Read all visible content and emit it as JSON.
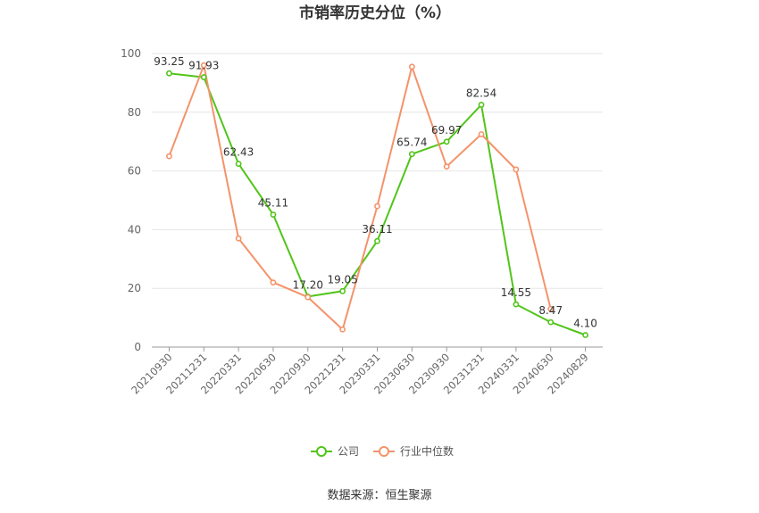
{
  "chart_data": {
    "type": "line",
    "title": "市销率历史分位（%）",
    "categories": [
      "20210930",
      "20211231",
      "20220331",
      "20220630",
      "20220930",
      "20221231",
      "20230331",
      "20230630",
      "20230930",
      "20231231",
      "20240331",
      "20240630",
      "20240829"
    ],
    "series": [
      {
        "name": "公司",
        "color": "#52c41a",
        "values": [
          93.25,
          91.93,
          62.43,
          45.11,
          17.2,
          19.05,
          36.11,
          65.74,
          69.97,
          82.54,
          14.55,
          8.47,
          4.1
        ],
        "labeled": true
      },
      {
        "name": "行业中位数",
        "color": "#f4936b",
        "values": [
          65,
          96,
          37,
          22,
          17,
          6,
          48,
          95.5,
          61.5,
          72.5,
          60.5,
          13,
          null
        ],
        "labeled": false
      }
    ],
    "y_ticks": [
      0,
      20,
      40,
      60,
      80,
      100
    ],
    "ylim": [
      0,
      100
    ],
    "grid": true,
    "legend_position": "bottom-center"
  },
  "source": "数据来源：恒生聚源"
}
